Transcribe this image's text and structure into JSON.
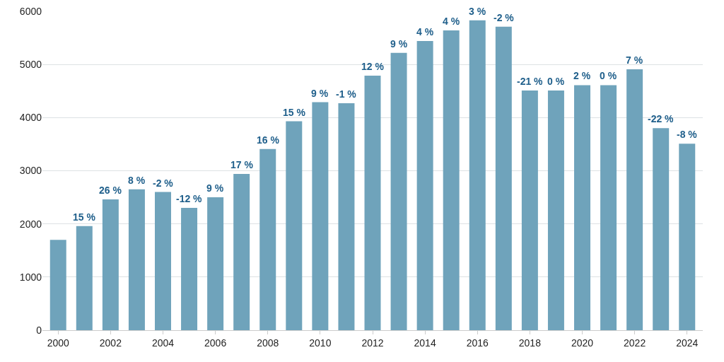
{
  "chart_data": {
    "type": "bar",
    "x": [
      2000,
      2001,
      2002,
      2003,
      2004,
      2005,
      2006,
      2007,
      2008,
      2009,
      2010,
      2011,
      2012,
      2013,
      2014,
      2015,
      2016,
      2017,
      2018,
      2019,
      2020,
      2021,
      2022,
      2023,
      2024
    ],
    "values": [
      1700,
      1960,
      2460,
      2650,
      2600,
      2300,
      2500,
      2940,
      3410,
      3930,
      4290,
      4270,
      4790,
      5220,
      5440,
      5640,
      5830,
      5710,
      4510,
      4510,
      4610,
      4610,
      4910,
      3800,
      3510
    ],
    "annotations": [
      {
        "text": "15 %",
        "x": 2001,
        "y": 1960
      },
      {
        "text": "26 %",
        "x": 2002,
        "y": 2460
      },
      {
        "text": "8 %",
        "x": 2003,
        "y": 2650
      },
      {
        "text": "-2 %",
        "x": 2004,
        "y": 2600
      },
      {
        "text": "-12 %",
        "x": 2005,
        "y": 2300
      },
      {
        "text": "9 %",
        "x": 2006,
        "y": 2500
      },
      {
        "text": "17 %",
        "x": 2007,
        "y": 2940
      },
      {
        "text": "16 %",
        "x": 2008,
        "y": 3410
      },
      {
        "text": "15 %",
        "x": 2009,
        "y": 3930
      },
      {
        "text": "9 %",
        "x": 2010,
        "y": 4290
      },
      {
        "text": "-1 %",
        "x": 2011,
        "y": 4270
      },
      {
        "text": "12 %",
        "x": 2012,
        "y": 4790
      },
      {
        "text": "9 %",
        "x": 2013,
        "y": 5220
      },
      {
        "text": "4 %",
        "x": 2014,
        "y": 5440
      },
      {
        "text": "4 %",
        "x": 2015,
        "y": 5640
      },
      {
        "text": "3 %",
        "x": 2016,
        "y": 5830
      },
      {
        "text": "-2 %",
        "x": 2017,
        "y": 5710
      },
      {
        "text": "-21 %",
        "x": 2018,
        "y": 4510
      },
      {
        "text": "0 %",
        "x": 2019,
        "y": 4510
      },
      {
        "text": "2 %",
        "x": 2020,
        "y": 4610
      },
      {
        "text": "0 %",
        "x": 2021,
        "y": 4610
      },
      {
        "text": "7 %",
        "x": 2022,
        "y": 4910
      },
      {
        "text": "-22 %",
        "x": 2023,
        "y": 3800
      },
      {
        "text": "-8 %",
        "x": 2024,
        "y": 3510
      }
    ],
    "color": "#6fa3bb",
    "xlim": [
      1999.4,
      2024.6
    ],
    "xticks": [
      2000,
      2002,
      2004,
      2006,
      2008,
      2010,
      2012,
      2014,
      2016,
      2018,
      2020,
      2022,
      2024
    ],
    "ylim": [
      0,
      6000
    ],
    "yticks": [
      0,
      1000,
      2000,
      3000,
      4000,
      5000,
      6000
    ],
    "grid": "y"
  }
}
